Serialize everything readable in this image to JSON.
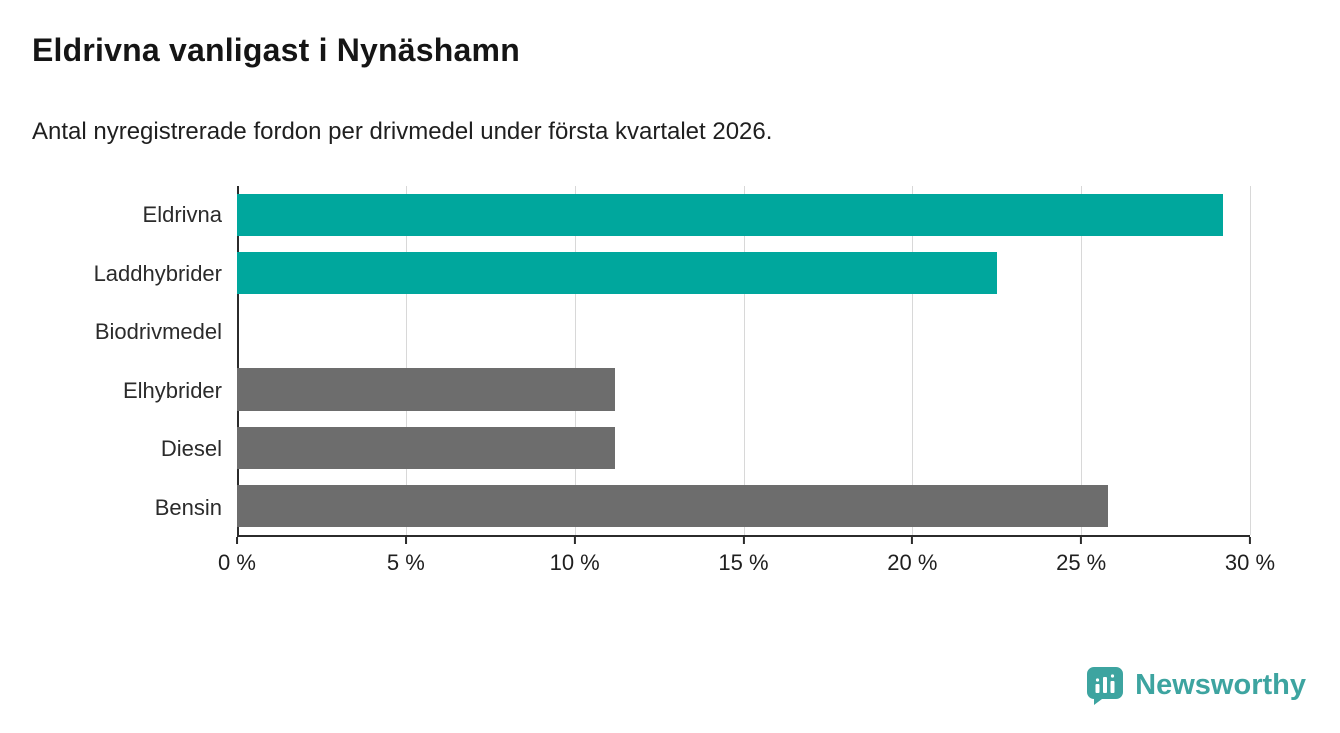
{
  "chart_data": {
    "type": "bar",
    "orientation": "horizontal",
    "title": "Eldrivna vanligast i Nynäshamn",
    "subtitle": "Antal nyregistrerade fordon per drivmedel under första kvartalet 2026.",
    "categories": [
      "Eldrivna",
      "Laddhybrider",
      "Biodrivmedel",
      "Elhybrider",
      "Diesel",
      "Bensin"
    ],
    "values": [
      29.2,
      22.5,
      0,
      11.2,
      11.2,
      25.8
    ],
    "unit": "%",
    "xlim": [
      0,
      30
    ],
    "xticks": [
      0,
      5,
      10,
      15,
      20,
      25,
      30
    ],
    "xtick_labels": [
      "0 %",
      "5 %",
      "10 %",
      "15 %",
      "20 %",
      "25 %",
      "30 %"
    ],
    "bar_colors": [
      "#00a79d",
      "#00a79d",
      "#6d6d6d",
      "#6d6d6d",
      "#6d6d6d",
      "#6d6d6d"
    ],
    "colors": {
      "highlight": "#00a79d",
      "default": "#6d6d6d",
      "grid": "#d8d8d8",
      "axis": "#2b2b2b"
    },
    "grid": true,
    "legend": "none"
  },
  "branding": {
    "logo_text": "Newsworthy",
    "logo_color": "#3da4a0",
    "logo_icon": "speech-bubble-bar-chart-icon"
  }
}
